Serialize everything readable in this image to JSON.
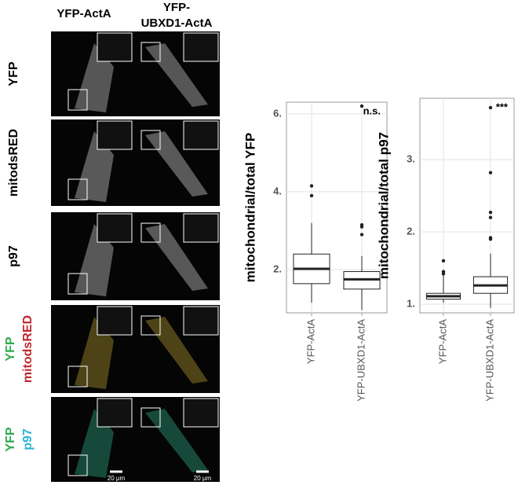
{
  "figure": {
    "column_headers": [
      [
        "YFP-ActA"
      ],
      [
        "YFP-",
        "UBXD1-ActA"
      ]
    ],
    "row_labels": [
      [
        {
          "text": "YFP",
          "color": "#000000"
        }
      ],
      [
        {
          "text": "mitodsRED",
          "color": "#000000"
        }
      ],
      [
        {
          "text": "p97",
          "color": "#000000"
        }
      ],
      [
        {
          "text": "YFP",
          "color": "#2fa84f"
        },
        {
          "text": "mitodsRED",
          "color": "#c0272d"
        }
      ],
      [
        {
          "text": "YFP",
          "color": "#2fa84f"
        },
        {
          "text": "p97",
          "color": "#2bb5d6"
        }
      ]
    ],
    "scale_bar_labels": [
      "20 μm",
      "20 μm"
    ]
  },
  "chart_data": [
    {
      "type": "box",
      "ylabel": "mitochondrial/total YFP",
      "annotation": "n.s.",
      "categories": [
        "YFP-ActA",
        "YFP-UBXD1-ActA"
      ],
      "ylim": [
        0.89,
        6.3
      ],
      "yticks": [
        {
          "value": 2,
          "label": "2."
        },
        {
          "value": 4,
          "label": "4."
        },
        {
          "value": 6,
          "label": "6."
        }
      ],
      "grid": true,
      "color": "#222222",
      "boxes": [
        {
          "min": 1.15,
          "q1": 1.64,
          "median": 2.02,
          "q3": 2.4,
          "max": 3.2,
          "outliers": [
            3.9,
            4.15
          ]
        },
        {
          "min": 0.96,
          "q1": 1.5,
          "median": 1.75,
          "q3": 1.95,
          "max": 2.35,
          "outliers": [
            2.9,
            3.1,
            3.15,
            6.2
          ]
        }
      ]
    },
    {
      "type": "box",
      "ylabel": "mitochondrial/total p97",
      "annotation": "***",
      "categories": [
        "YFP-ActA",
        "YFP-UBXD1-ActA"
      ],
      "ylim": [
        0.88,
        3.85
      ],
      "yticks": [
        {
          "value": 1,
          "label": "1."
        },
        {
          "value": 2,
          "label": "2."
        },
        {
          "value": 3,
          "label": "3."
        }
      ],
      "grid": true,
      "color": "#222222",
      "boxes": [
        {
          "min": 1.02,
          "q1": 1.07,
          "median": 1.11,
          "q3": 1.15,
          "max": 1.4,
          "outliers": [
            1.42,
            1.45,
            1.6
          ]
        },
        {
          "min": 0.95,
          "q1": 1.15,
          "median": 1.26,
          "q3": 1.38,
          "max": 1.7,
          "outliers": [
            1.9,
            1.92,
            2.2,
            2.27,
            2.82,
            3.72
          ]
        }
      ]
    }
  ]
}
